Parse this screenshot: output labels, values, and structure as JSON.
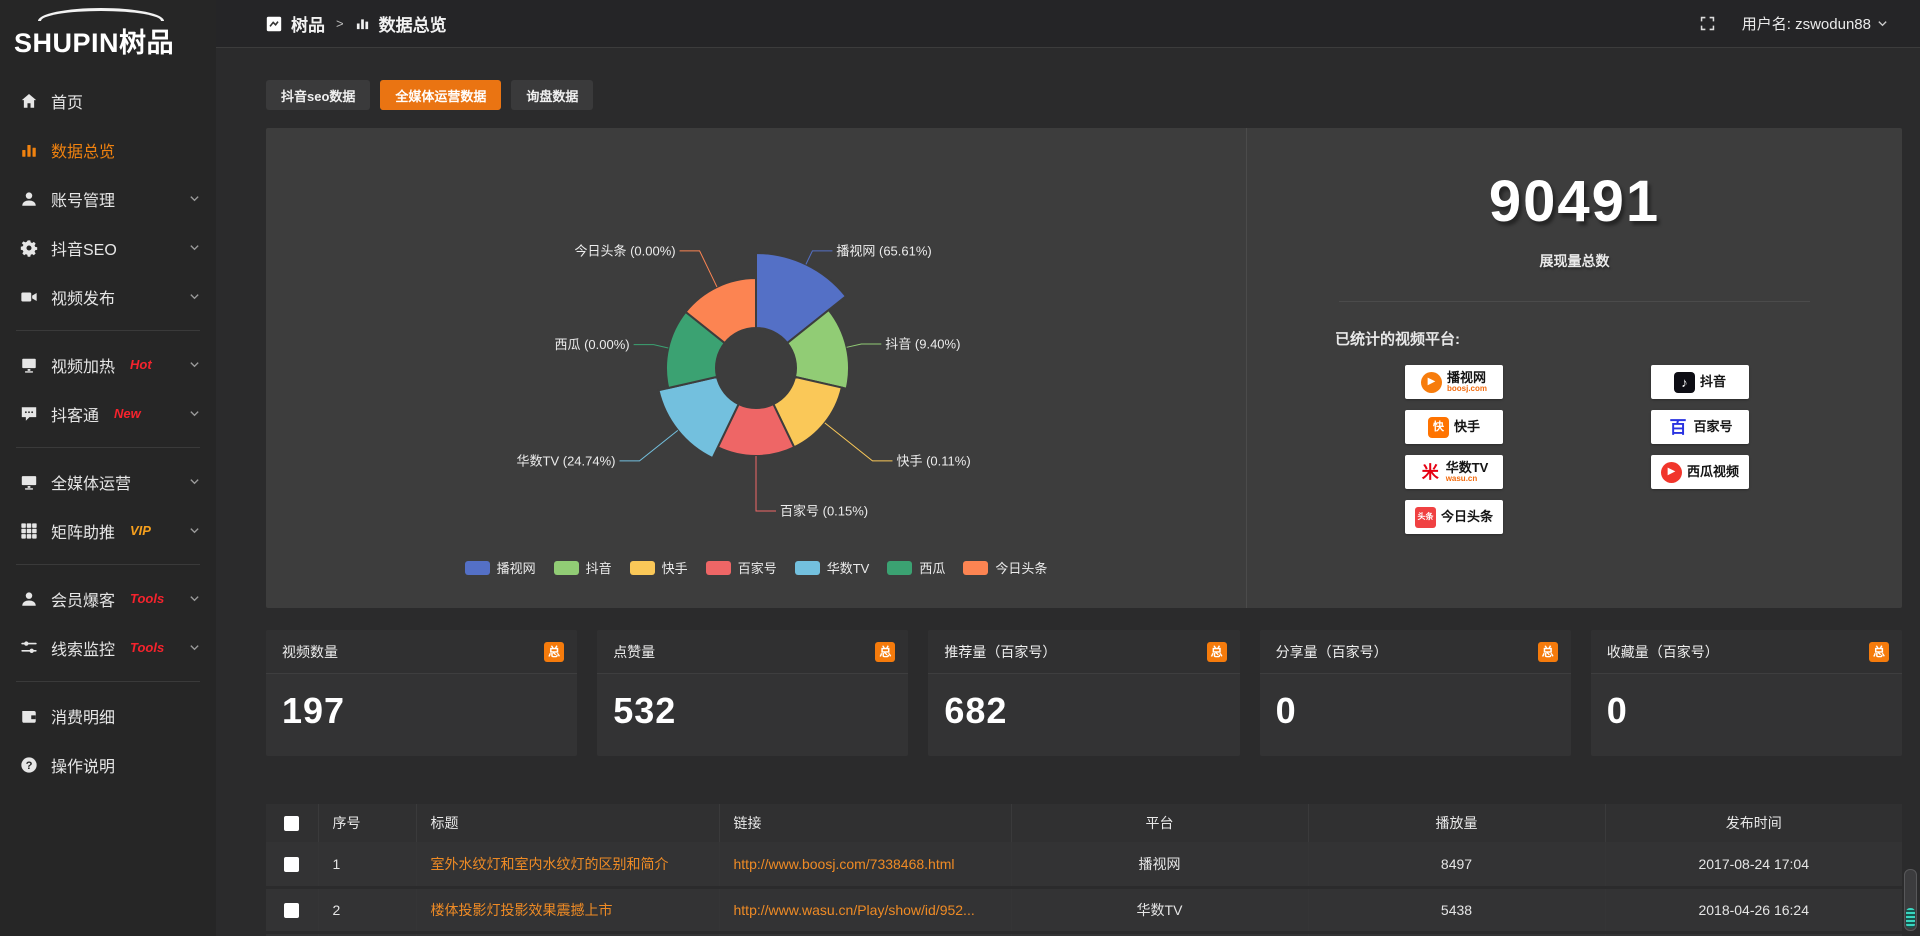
{
  "brand": {
    "en": "SHUPIN",
    "cn": "树品"
  },
  "sidebar": {
    "items": [
      {
        "label": "首页",
        "icon": "home"
      },
      {
        "label": "数据总览",
        "icon": "chart",
        "active": true
      },
      {
        "label": "账号管理",
        "icon": "user",
        "chevron": true
      },
      {
        "label": "抖音SEO",
        "icon": "gear",
        "chevron": true
      },
      {
        "label": "视频发布",
        "icon": "video",
        "chevron": true
      },
      {
        "divider": true
      },
      {
        "label": "视频加热",
        "icon": "display",
        "badge": "Hot",
        "badge_color": "#f5232d",
        "chevron": true
      },
      {
        "label": "抖客通",
        "icon": "chat",
        "badge": "New",
        "badge_color": "#f5232d",
        "chevron": true
      },
      {
        "divider": true
      },
      {
        "label": "全媒体运营",
        "icon": "monitor",
        "chevron": true
      },
      {
        "label": "矩阵助推",
        "icon": "grid",
        "badge": "VIP",
        "badge_color": "#f7a01d",
        "chevron": true
      },
      {
        "divider": true
      },
      {
        "label": "会员爆客",
        "icon": "user",
        "badge": "Tools",
        "badge_color": "#f5232d",
        "chevron": true
      },
      {
        "label": "线索监控",
        "icon": "sliders",
        "badge": "Tools",
        "badge_color": "#f5232d",
        "chevron": true
      },
      {
        "divider": true
      },
      {
        "label": "消费明细",
        "icon": "wallet"
      },
      {
        "label": "操作说明",
        "icon": "question"
      }
    ]
  },
  "header": {
    "breadcrumb_root": "树品",
    "breadcrumb_sep": ">",
    "breadcrumb_current": "数据总览",
    "username": "用户名: zswodun88"
  },
  "tabs": {
    "items": [
      "抖音seo数据",
      "全媒体运营数据",
      "询盘数据"
    ],
    "active_index": 1
  },
  "chart_data": {
    "type": "pie",
    "style": "nightingale-rose",
    "legend_position": "bottom",
    "slices": [
      {
        "name": "播视网",
        "percent": 65.61,
        "label": "播视网 (65.61%)",
        "color": "#5470c6"
      },
      {
        "name": "抖音",
        "percent": 9.4,
        "label": "抖音 (9.40%)",
        "color": "#91cc75"
      },
      {
        "name": "快手",
        "percent": 0.11,
        "label": "快手 (0.11%)",
        "color": "#fac858"
      },
      {
        "name": "百家号",
        "percent": 0.15,
        "label": "百家号 (0.15%)",
        "color": "#ee6666"
      },
      {
        "name": "华数TV",
        "percent": 24.74,
        "label": "华数TV (24.74%)",
        "color": "#73c0de"
      },
      {
        "name": "西瓜",
        "percent": 0.0,
        "label": "西瓜 (0.00%)",
        "color": "#3ba272"
      },
      {
        "name": "今日头条",
        "percent": 0.0,
        "label": "今日头条 (0.00%)",
        "color": "#fc8452"
      }
    ],
    "radius_hint_px": [
      115,
      93,
      88,
      88,
      100,
      90,
      90
    ]
  },
  "summary": {
    "total": "90491",
    "total_label": "展现量总数",
    "platforms_label": "已统计的视频平台:",
    "platforms": [
      {
        "name": "播视网",
        "sub": "boosj.com",
        "logo": "boosj"
      },
      {
        "name": "抖音",
        "logo": "douyin"
      },
      {
        "name": "快手",
        "logo": "kuaishou"
      },
      {
        "name": "百家号",
        "logo": "baijia"
      },
      {
        "name": "华数TV",
        "sub": "wasu.cn",
        "logo": "wasu"
      },
      {
        "name": "西瓜视频",
        "logo": "xigua"
      },
      {
        "name": "今日头条",
        "logo": "toutiao"
      }
    ]
  },
  "stat_cards": [
    {
      "label": "视频数量",
      "badge": "总",
      "value": "197"
    },
    {
      "label": "点赞量",
      "badge": "总",
      "value": "532"
    },
    {
      "label": "推荐量（百家号）",
      "badge": "总",
      "value": "682"
    },
    {
      "label": "分享量（百家号）",
      "badge": "总",
      "value": "0"
    },
    {
      "label": "收藏量（百家号）",
      "badge": "总",
      "value": "0"
    }
  ],
  "table": {
    "headers": [
      "序号",
      "标题",
      "链接",
      "平台",
      "播放量",
      "发布时间"
    ],
    "rows": [
      {
        "no": "1",
        "title": "室外水纹灯和室内水纹灯的区别和简介",
        "link": "http://www.boosj.com/7338468.html",
        "platform": "播视网",
        "plays": "8497",
        "time": "2017-08-24 17:04"
      },
      {
        "no": "2",
        "title": "楼体投影灯投影效果震撼上市",
        "link": "http://www.wasu.cn/Play/show/id/952...",
        "platform": "华数TV",
        "plays": "5438",
        "time": "2018-04-26 16:24"
      }
    ]
  },
  "colors": {
    "accent": "#ea7412",
    "link": "#ef8b25",
    "badge": "#f57b0c",
    "active_menu": "#f0820f"
  }
}
